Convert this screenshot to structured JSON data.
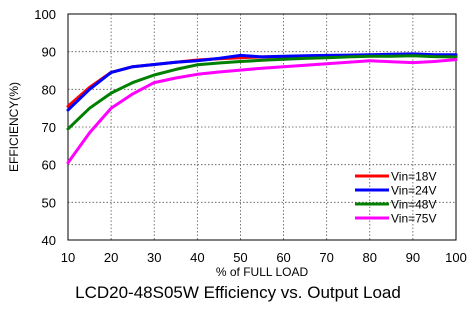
{
  "caption": "LCD20-48S05W Efficiency vs. Output Load",
  "chart_data": {
    "type": "line",
    "title": "",
    "xlabel": "% of FULL LOAD",
    "ylabel": "EFFICIENCY(%)",
    "xlim": [
      10,
      100
    ],
    "ylim": [
      40,
      100
    ],
    "x_ticks": [
      10,
      20,
      30,
      40,
      50,
      60,
      70,
      80,
      90,
      100
    ],
    "y_ticks": [
      40,
      50,
      60,
      70,
      80,
      90,
      100
    ],
    "grid": true,
    "legend_position": "bottom-right",
    "series": [
      {
        "name": "Vin=18V",
        "color": "#ff0000",
        "x": [
          10,
          15,
          20,
          25,
          30,
          35,
          40,
          45,
          50,
          55,
          60,
          65,
          70,
          75,
          80,
          85,
          90,
          95,
          100
        ],
        "y": [
          75.5,
          80.5,
          84.5,
          86.0,
          86.6,
          87.2,
          87.8,
          88.1,
          88.4,
          88.6,
          88.7,
          88.8,
          88.9,
          88.9,
          89.0,
          89.0,
          89.0,
          88.8,
          88.6
        ]
      },
      {
        "name": "Vin=24V",
        "color": "#0000ff",
        "x": [
          10,
          15,
          20,
          25,
          30,
          35,
          40,
          45,
          50,
          55,
          60,
          65,
          70,
          75,
          80,
          85,
          90,
          95,
          100
        ],
        "y": [
          74.5,
          80.0,
          84.5,
          86.0,
          86.6,
          87.2,
          87.6,
          88.2,
          89.0,
          88.6,
          88.8,
          88.9,
          89.0,
          89.1,
          89.2,
          89.3,
          89.4,
          89.2,
          89.2
        ]
      },
      {
        "name": "Vin=48V",
        "color": "#008000",
        "x": [
          10,
          15,
          20,
          25,
          30,
          35,
          40,
          45,
          50,
          55,
          60,
          65,
          70,
          75,
          80,
          85,
          90,
          95,
          100
        ],
        "y": [
          69.5,
          75.0,
          79.0,
          81.8,
          83.8,
          85.3,
          86.5,
          87.0,
          87.4,
          87.7,
          88.0,
          88.2,
          88.4,
          88.6,
          88.8,
          88.8,
          88.9,
          88.7,
          88.6
        ]
      },
      {
        "name": "Vin=75V",
        "color": "#ff00ff",
        "x": [
          10,
          15,
          20,
          25,
          30,
          35,
          40,
          45,
          50,
          55,
          60,
          65,
          70,
          75,
          80,
          85,
          90,
          95,
          100
        ],
        "y": [
          60.5,
          68.5,
          75.0,
          78.8,
          81.8,
          83.0,
          84.0,
          84.6,
          85.1,
          85.6,
          86.0,
          86.4,
          86.8,
          87.2,
          87.6,
          87.3,
          87.1,
          87.4,
          87.9
        ]
      }
    ]
  }
}
